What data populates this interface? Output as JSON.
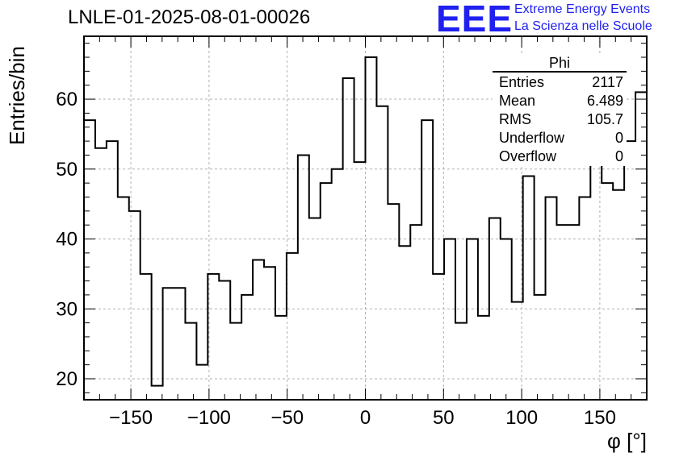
{
  "title": "LNLE-01-2025-08-01-00026",
  "logo": {
    "mark": "EEE",
    "line1": "Extreme Energy Events",
    "line2": "La Scienza nelle Scuole",
    "color": "#2020f0"
  },
  "stats_box": {
    "title": "Phi",
    "rows": [
      {
        "label": "Entries",
        "value": "2117"
      },
      {
        "label": "Mean",
        "value": "6.489"
      },
      {
        "label": "RMS",
        "value": "105.7"
      },
      {
        "label": "Underflow",
        "value": "0"
      },
      {
        "label": "Overflow",
        "value": "0"
      }
    ]
  },
  "chart_data": {
    "type": "histogram",
    "title": "LNLE-01-2025-08-01-00026",
    "xlabel": "φ [°]",
    "ylabel": "Entries/bin",
    "xlim": [
      -180,
      180
    ],
    "ylim": [
      17,
      69
    ],
    "bin_width": 7.2,
    "x_ticks": [
      -150,
      -100,
      -50,
      0,
      50,
      100,
      150
    ],
    "x_tick_labels": [
      "−150",
      "−100",
      "−50",
      "0",
      "50",
      "100",
      "150"
    ],
    "y_ticks": [
      20,
      30,
      40,
      50,
      60
    ],
    "y_tick_labels": [
      "20",
      "30",
      "40",
      "50",
      "60"
    ],
    "grid": true,
    "values": [
      57,
      53,
      54,
      46,
      44,
      35,
      19,
      33,
      33,
      28,
      22,
      35,
      34,
      28,
      32,
      37,
      36,
      29,
      38,
      52,
      43,
      48,
      50,
      63,
      51,
      66,
      59,
      45,
      39,
      42,
      57,
      35,
      40,
      28,
      40,
      29,
      43,
      40,
      31,
      49,
      32,
      46,
      42,
      42,
      46,
      56,
      48,
      47,
      54,
      61
    ]
  }
}
